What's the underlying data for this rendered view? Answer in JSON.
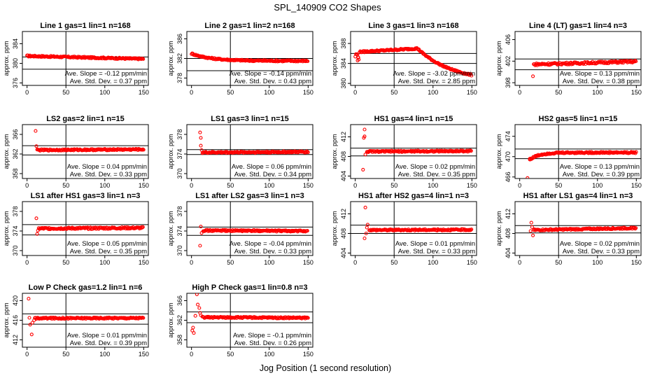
{
  "page": {
    "title": "SPL_140909  CO2 Shapes",
    "xlabel": "Jog Position (1 second resolution)"
  },
  "colors": {
    "points": "#ff0000",
    "axes": "#000000"
  },
  "chart_data": [
    {
      "type": "scatter",
      "title": "Line 1 gas=1 lin=1 n=168",
      "ylabel": "approx. ppm",
      "yticks": [
        376,
        380,
        384
      ],
      "ylim": [
        375.5,
        386.5
      ],
      "xticks": [
        0,
        50,
        100,
        150
      ],
      "xlim": [
        -6,
        156
      ],
      "hlines": [
        381.3,
        378.8
      ],
      "vline": 50,
      "slope": "Ave. Slope = -0.12  ppm/min",
      "sd": "Ave. Std. Dev. = 0.37  ppm",
      "shape": {
        "kind": "flat",
        "start": 0,
        "end": 150,
        "level": 381.5,
        "slope": -0.004,
        "noise": 0.15
      }
    },
    {
      "type": "scatter",
      "title": "Line 2 gas=1 lin=2 n=168",
      "ylabel": "approx. ppm",
      "yticks": [
        378,
        382,
        386
      ],
      "ylim": [
        376.5,
        387.5
      ],
      "xticks": [
        0,
        50,
        100,
        150
      ],
      "xlim": [
        -6,
        156
      ],
      "hlines": [
        382,
        379.5
      ],
      "vline": 50,
      "slope": "Ave. Slope = -0.14  ppm/min",
      "sd": "Ave. Std. Dev. = 0.43  ppm",
      "shape": {
        "kind": "decay",
        "start": 0,
        "end": 150,
        "level": 381.5,
        "amp": 1.5,
        "tau": 25,
        "noise": 0.15
      }
    },
    {
      "type": "scatter",
      "title": "Line 3 gas=1 lin=3 n=168",
      "ylabel": "approx. ppm",
      "yticks": [
        380,
        384,
        388
      ],
      "ylim": [
        379.6,
        390.4
      ],
      "xticks": [
        0,
        50,
        100,
        150
      ],
      "xlim": [
        -6,
        156
      ],
      "hlines": [
        386,
        384
      ],
      "vline": 50,
      "slope": "Ave. Slope = -3.02  ppm/min",
      "sd": "Ave. Std. Dev. = 2.85  ppm",
      "shape": {
        "kind": "line3",
        "start": 0,
        "end": 150,
        "noise": 0.15
      }
    },
    {
      "type": "scatter",
      "title": "Line 4 (LT) gas=1 lin=4 n=3",
      "ylabel": "approx. ppm",
      "yticks": [
        398,
        402,
        406
      ],
      "ylim": [
        397.5,
        407.5
      ],
      "xticks": [
        0,
        50,
        100,
        150
      ],
      "xlim": [
        -6,
        156
      ],
      "hlines": [
        402.4,
        400.4
      ],
      "vline": 50,
      "slope": "Ave. Slope = 0.13  ppm/min",
      "sd": "Ave. Std. Dev. = 0.38  ppm",
      "shape": {
        "kind": "flat",
        "start": 18,
        "end": 150,
        "level": 401.4,
        "slope": 0.004,
        "noise": 0.2,
        "outliers": [
          [
            17,
            399.2
          ]
        ]
      }
    },
    {
      "type": "scatter",
      "title": "LS2 gas=2 lin=1 n=15",
      "ylabel": "approx. ppm",
      "yticks": [
        358,
        362,
        366
      ],
      "ylim": [
        357,
        368
      ],
      "xticks": [
        0,
        50,
        100,
        150
      ],
      "xlim": [
        -6,
        156
      ],
      "hlines": [
        363.7,
        361.8
      ],
      "vline": 50,
      "slope": "Ave. Slope = 0.04  ppm/min",
      "sd": "Ave. Std. Dev. = 0.33  ppm",
      "shape": {
        "kind": "flat",
        "start": 14,
        "end": 150,
        "level": 362.8,
        "slope": 0.001,
        "noise": 0.15,
        "outliers": [
          [
            11,
            366.7
          ],
          [
            12,
            363.6
          ],
          [
            13,
            362.9
          ]
        ]
      }
    },
    {
      "type": "scatter",
      "title": "LS1 gas=3 lin=1 n=15",
      "ylabel": "approx. ppm",
      "yticks": [
        370,
        374,
        378
      ],
      "ylim": [
        369,
        380
      ],
      "xticks": [
        0,
        50,
        100,
        150
      ],
      "xlim": [
        -6,
        156
      ],
      "hlines": [
        374.9,
        373.9
      ],
      "vline": 50,
      "slope": "Ave. Slope = 0.06  ppm/min",
      "sd": "Ave. Std. Dev. = 0.34  ppm",
      "shape": {
        "kind": "flat",
        "start": 14,
        "end": 150,
        "level": 374.3,
        "slope": 0.001,
        "noise": 0.15,
        "outliers": [
          [
            11,
            378.4
          ],
          [
            12,
            377.3
          ],
          [
            12,
            375.7
          ],
          [
            13,
            374.8
          ]
        ]
      }
    },
    {
      "type": "scatter",
      "title": "HS1 gas=4 lin=1 n=15",
      "ylabel": "approx. ppm",
      "yticks": [
        404,
        408,
        412
      ],
      "ylim": [
        403.5,
        414.5
      ],
      "xticks": [
        0,
        50,
        100,
        150
      ],
      "xlim": [
        -6,
        156
      ],
      "hlines": [
        409.7,
        408.1
      ],
      "vline": 50,
      "slope": "Ave. Slope = 0.02  ppm/min",
      "sd": "Ave. Std. Dev. = 0.35  ppm",
      "shape": {
        "kind": "flat",
        "start": 15,
        "end": 150,
        "level": 409,
        "slope": 0.0008,
        "noise": 0.15,
        "outliers": [
          [
            10,
            405.3
          ],
          [
            11,
            411.8
          ],
          [
            12,
            413.5
          ],
          [
            12,
            412.1
          ],
          [
            13,
            408.4
          ]
        ]
      }
    },
    {
      "type": "scatter",
      "title": "HS2 gas=5 lin=1 n=15",
      "ylabel": "approx. ppm",
      "yticks": [
        466,
        470,
        474
      ],
      "ylim": [
        465.7,
        476.3
      ],
      "xticks": [
        0,
        50,
        100,
        150
      ],
      "xlim": [
        -6,
        156
      ],
      "hlines": [
        471.5,
        469.6
      ],
      "vline": 50,
      "slope": "Ave. Slope = 0.13  ppm/min",
      "sd": "Ave. Std. Dev. = 0.39  ppm",
      "shape": {
        "kind": "rise",
        "start": 13,
        "end": 150,
        "level": 470.8,
        "amp": -1.4,
        "tau": 12,
        "noise": 0.15,
        "outliers": [
          [
            10,
            465.8
          ],
          [
            13,
            469.6
          ]
        ]
      }
    },
    {
      "type": "scatter",
      "title": "LS1 after HS1 gas=3 lin=1 n=3",
      "ylabel": "approx. ppm",
      "yticks": [
        370,
        374,
        378
      ],
      "ylim": [
        369,
        380
      ],
      "xticks": [
        0,
        50,
        100,
        150
      ],
      "xlim": [
        -6,
        156
      ],
      "hlines": [
        375.3,
        373.2
      ],
      "vline": 50,
      "slope": "Ave. Slope = 0.05  ppm/min",
      "sd": "Ave. Std. Dev. = 0.35  ppm",
      "shape": {
        "kind": "flat",
        "start": 15,
        "end": 150,
        "level": 374.5,
        "slope": 0.001,
        "noise": 0.18,
        "outliers": [
          [
            12,
            376.6
          ],
          [
            13,
            373.4
          ],
          [
            14,
            374.1
          ]
        ]
      }
    },
    {
      "type": "scatter",
      "title": "LS1 after LS2 gas=3 lin=1 n=3",
      "ylabel": "approx. ppm",
      "yticks": [
        370,
        374,
        378
      ],
      "ylim": [
        369,
        380
      ],
      "xticks": [
        0,
        50,
        100,
        150
      ],
      "xlim": [
        -6,
        156
      ],
      "hlines": [
        374.8,
        373.1
      ],
      "vline": 50,
      "slope": "Ave. Slope = -0.04  ppm/min",
      "sd": "Ave. Std. Dev. = 0.33  ppm",
      "shape": {
        "kind": "flat",
        "start": 15,
        "end": 150,
        "level": 374.1,
        "slope": -0.0008,
        "noise": 0.15,
        "outliers": [
          [
            11,
            371
          ],
          [
            12,
            374.9
          ],
          [
            13,
            373.6
          ]
        ]
      }
    },
    {
      "type": "scatter",
      "title": "HS1 after HS2 gas=4 lin=1 n=3",
      "ylabel": "approx. ppm",
      "yticks": [
        404,
        408,
        412
      ],
      "ylim": [
        403.5,
        414.5
      ],
      "xticks": [
        0,
        50,
        100,
        150
      ],
      "xlim": [
        -6,
        156
      ],
      "hlines": [
        409.7,
        408
      ],
      "vline": 50,
      "slope": "Ave. Slope = 0.01  ppm/min",
      "sd": "Ave. Std. Dev. = 0.33  ppm",
      "shape": {
        "kind": "flat",
        "start": 18,
        "end": 150,
        "level": 408.7,
        "slope": 0.0004,
        "noise": 0.15,
        "outliers": [
          [
            12,
            407
          ],
          [
            13,
            413.3
          ],
          [
            14,
            408
          ],
          [
            15,
            409.2
          ],
          [
            16,
            409.8
          ]
        ]
      }
    },
    {
      "type": "scatter",
      "title": "HS1 after LS1 gas=4 lin=1 n=3",
      "ylabel": "approx. ppm",
      "yticks": [
        404,
        408,
        412
      ],
      "ylim": [
        403.5,
        414.5
      ],
      "xticks": [
        0,
        50,
        100,
        150
      ],
      "xlim": [
        -6,
        156
      ],
      "hlines": [
        409.6,
        408.1
      ],
      "vline": 50,
      "slope": "Ave. Slope = 0.02  ppm/min",
      "sd": "Ave. Std. Dev. = 0.33  ppm",
      "shape": {
        "kind": "flat",
        "start": 18,
        "end": 150,
        "level": 408.7,
        "slope": 0.003,
        "noise": 0.15,
        "outliers": [
          [
            14,
            408.5
          ],
          [
            15,
            410.2
          ],
          [
            16,
            409.3
          ],
          [
            17,
            407.6
          ]
        ]
      }
    },
    {
      "type": "scatter",
      "title": "Low P Check gas=1.2 lin=1 n=6",
      "ylabel": "approx. ppm",
      "yticks": [
        412,
        416,
        420
      ],
      "ylim": [
        410.5,
        421.5
      ],
      "xticks": [
        0,
        50,
        100,
        150
      ],
      "xlim": [
        -6,
        156
      ],
      "hlines": [
        417.3,
        415.2
      ],
      "vline": 50,
      "slope": "Ave. Slope = 0.01  ppm/min",
      "sd": "Ave. Std. Dev. = 0.39  ppm",
      "shape": {
        "kind": "flat",
        "start": 10,
        "end": 150,
        "level": 416.4,
        "slope": 0.0004,
        "noise": 0.15,
        "outliers": [
          [
            2,
            420.4
          ],
          [
            3,
            416.5
          ],
          [
            4,
            415.1
          ],
          [
            6,
            413.1
          ],
          [
            7,
            415.5
          ],
          [
            9,
            416
          ]
        ]
      }
    },
    {
      "type": "scatter",
      "title": "High P Check gas=1 lin=0.8 n=3",
      "ylabel": "approx. ppm",
      "yticks": [
        358,
        362,
        366
      ],
      "ylim": [
        356.5,
        367.5
      ],
      "xticks": [
        0,
        50,
        100,
        150
      ],
      "xlim": [
        -6,
        156
      ],
      "hlines": [
        363.7,
        361.5
      ],
      "vline": 50,
      "slope": "Ave. Slope = -0.1  ppm/min",
      "sd": "Ave. Std. Dev. = 0.26  ppm",
      "shape": {
        "kind": "flat",
        "start": 14,
        "end": 150,
        "level": 362.6,
        "slope": -0.001,
        "noise": 0.15,
        "outliers": [
          [
            1,
            359.9
          ],
          [
            2,
            360.5
          ],
          [
            3,
            359.4
          ],
          [
            5,
            362.9
          ],
          [
            7,
            367.3
          ],
          [
            8,
            365.2
          ],
          [
            10,
            364.5
          ],
          [
            11,
            363.5
          ],
          [
            12,
            363
          ]
        ]
      }
    }
  ]
}
